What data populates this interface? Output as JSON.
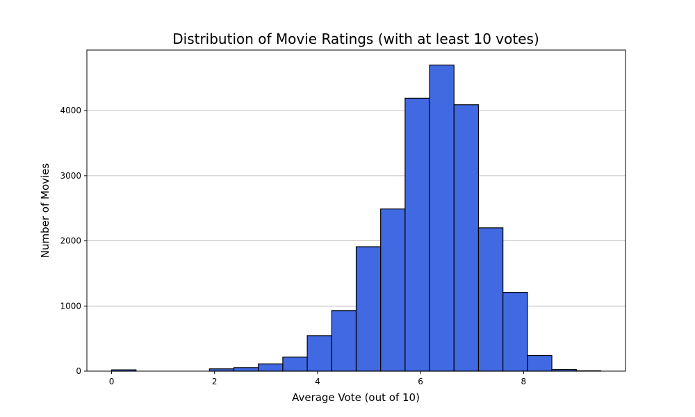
{
  "chart_data": {
    "type": "bar",
    "title": "Distribution of Movie Ratings (with at least 10 votes)",
    "xlabel": "Average Vote (out of 10)",
    "ylabel": "Number of Movies",
    "xlim": [
      -0.48,
      9.98
    ],
    "ylim": [
      0,
      4930
    ],
    "bin_width": 0.475,
    "bins": [
      {
        "x0": 0.0,
        "x1": 0.475,
        "count": 20
      },
      {
        "x0": 0.475,
        "x1": 0.95,
        "count": 0
      },
      {
        "x0": 0.95,
        "x1": 1.425,
        "count": 0
      },
      {
        "x0": 1.425,
        "x1": 1.9,
        "count": 0
      },
      {
        "x0": 1.9,
        "x1": 2.375,
        "count": 35
      },
      {
        "x0": 2.375,
        "x1": 2.85,
        "count": 55
      },
      {
        "x0": 2.85,
        "x1": 3.325,
        "count": 110
      },
      {
        "x0": 3.325,
        "x1": 3.8,
        "count": 215
      },
      {
        "x0": 3.8,
        "x1": 4.275,
        "count": 545
      },
      {
        "x0": 4.275,
        "x1": 4.75,
        "count": 930
      },
      {
        "x0": 4.75,
        "x1": 5.225,
        "count": 1910
      },
      {
        "x0": 5.225,
        "x1": 5.7,
        "count": 2490
      },
      {
        "x0": 5.7,
        "x1": 6.175,
        "count": 4190
      },
      {
        "x0": 6.175,
        "x1": 6.65,
        "count": 4700
      },
      {
        "x0": 6.65,
        "x1": 7.125,
        "count": 4090
      },
      {
        "x0": 7.125,
        "x1": 7.6,
        "count": 2200
      },
      {
        "x0": 7.6,
        "x1": 8.075,
        "count": 1210
      },
      {
        "x0": 8.075,
        "x1": 8.55,
        "count": 240
      },
      {
        "x0": 8.55,
        "x1": 9.025,
        "count": 25
      },
      {
        "x0": 9.025,
        "x1": 9.5,
        "count": 5
      }
    ],
    "x_ticks": [
      0,
      2,
      4,
      6,
      8
    ],
    "x_tick_labels": [
      "0",
      "2",
      "4",
      "6",
      "8"
    ],
    "y_ticks": [
      0,
      1000,
      2000,
      3000,
      4000
    ],
    "y_tick_labels": [
      "0",
      "1000",
      "2000",
      "3000",
      "4000"
    ],
    "grid": {
      "y": true,
      "x": false
    },
    "colors": {
      "bar_fill": "#4169e1",
      "bar_edge": "#000000",
      "grid": "#b0b0b0"
    }
  }
}
